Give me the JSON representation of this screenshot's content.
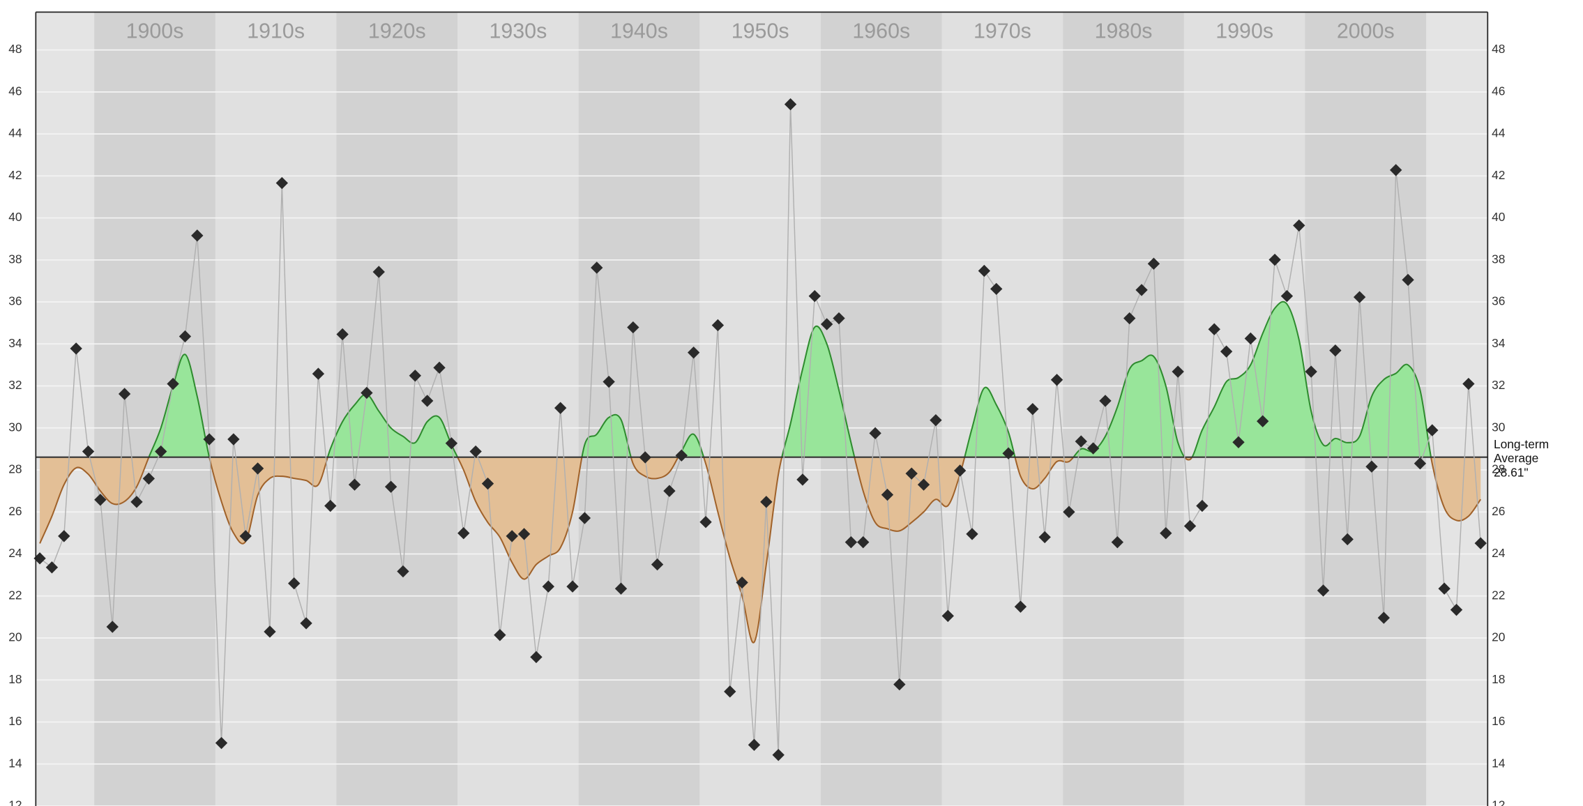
{
  "chart_data": {
    "type": "area-line",
    "x": [
      1895,
      1896,
      1897,
      1898,
      1899,
      1900,
      1901,
      1902,
      1903,
      1904,
      1905,
      1906,
      1907,
      1908,
      1909,
      1910,
      1911,
      1912,
      1913,
      1914,
      1915,
      1916,
      1917,
      1918,
      1919,
      1920,
      1921,
      1922,
      1923,
      1924,
      1925,
      1926,
      1927,
      1928,
      1929,
      1930,
      1931,
      1932,
      1933,
      1934,
      1935,
      1936,
      1937,
      1938,
      1939,
      1940,
      1941,
      1942,
      1943,
      1944,
      1945,
      1946,
      1947,
      1948,
      1949,
      1950,
      1951,
      1952,
      1953,
      1954,
      1955,
      1956,
      1957,
      1958,
      1959,
      1960,
      1961,
      1962,
      1963,
      1964,
      1965,
      1966,
      1967,
      1968,
      1969,
      1970,
      1971,
      1972,
      1973,
      1974,
      1975,
      1976,
      1977,
      1978,
      1979,
      1980,
      1981,
      1982,
      1983,
      1984,
      1985,
      1986,
      1987,
      1988,
      1989,
      1990,
      1991,
      1992,
      1993,
      1994,
      1995,
      1996,
      1997,
      1998,
      1999,
      2000,
      2001,
      2002,
      2003,
      2004,
      2005,
      2006,
      2007,
      2008,
      2009,
      2010,
      2011,
      2012,
      2013,
      2014
    ],
    "values": [
      23.79,
      23.36,
      24.85,
      33.78,
      28.88,
      26.58,
      20.53,
      31.62,
      26.48,
      27.59,
      28.88,
      32.1,
      34.36,
      39.16,
      29.46,
      15.0,
      29.46,
      24.85,
      28.07,
      20.3,
      41.66,
      22.6,
      20.7,
      32.58,
      26.29,
      34.46,
      27.3,
      31.67,
      37.43,
      27.2,
      23.17,
      32.49,
      31.29,
      32.87,
      29.27,
      24.99,
      28.88,
      27.35,
      20.14,
      24.85,
      24.95,
      19.09,
      22.45,
      30.95,
      22.45,
      25.71,
      37.63,
      32.2,
      22.35,
      34.79,
      28.6,
      23.5,
      27.0,
      28.69,
      33.59,
      25.52,
      34.89,
      17.45,
      22.64,
      14.91,
      26.48,
      14.43,
      45.41,
      27.54,
      36.28,
      34.94,
      35.22,
      24.56,
      24.56,
      29.75,
      26.82,
      17.79,
      27.83,
      27.3,
      30.37,
      21.05,
      27.97,
      24.95,
      37.48,
      36.62,
      28.79,
      21.49,
      30.9,
      24.8,
      32.29,
      26.0,
      29.36,
      29.03,
      31.29,
      24.56,
      35.22,
      36.57,
      37.82,
      24.99,
      32.68,
      25.33,
      26.29,
      34.7,
      33.64,
      29.32,
      34.26,
      30.32,
      38.01,
      36.28,
      39.64,
      32.68,
      22.26,
      33.69,
      24.7,
      36.23,
      28.16,
      20.96,
      42.28,
      37.05,
      28.31,
      29.89,
      22.35,
      21.34,
      32.1,
      24.51
    ],
    "smoothed": [
      24.5,
      25.8,
      27.3,
      28.1,
      27.8,
      27.0,
      26.4,
      26.5,
      27.2,
      28.6,
      30.0,
      32.0,
      33.5,
      31.5,
      28.6,
      26.5,
      25.0,
      24.6,
      26.8,
      27.6,
      27.7,
      27.6,
      27.5,
      27.3,
      29.0,
      30.3,
      31.1,
      31.6,
      30.8,
      30.0,
      29.6,
      29.3,
      30.3,
      30.5,
      29.2,
      28.0,
      26.5,
      25.5,
      24.8,
      23.6,
      22.8,
      23.5,
      23.9,
      24.3,
      26.0,
      29.2,
      29.7,
      30.5,
      30.4,
      28.3,
      27.7,
      27.6,
      27.9,
      28.9,
      29.7,
      28.3,
      26.0,
      23.8,
      22.0,
      19.8,
      23.5,
      27.8,
      30.2,
      32.8,
      34.8,
      34.0,
      31.8,
      29.3,
      27.0,
      25.5,
      25.2,
      25.1,
      25.5,
      26.0,
      26.6,
      26.3,
      27.8,
      30.0,
      31.9,
      31.1,
      29.8,
      27.7,
      27.1,
      27.6,
      28.4,
      28.4,
      29.0,
      28.9,
      29.6,
      31.0,
      32.8,
      33.2,
      33.4,
      32.0,
      29.3,
      28.5,
      29.9,
      31.0,
      32.2,
      32.4,
      33.0,
      34.5,
      35.7,
      35.9,
      34.2,
      30.8,
      29.2,
      29.5,
      29.3,
      29.6,
      31.5,
      32.3,
      32.6,
      33.0,
      31.8,
      28.3,
      26.2,
      25.6,
      25.8,
      26.6
    ],
    "average": 28.61,
    "average_label": [
      "Long-term",
      "Average",
      "28.61\""
    ],
    "decades": [
      {
        "label": "1900s",
        "start": 1900,
        "end": 1910
      },
      {
        "label": "1910s",
        "start": 1910,
        "end": 1920
      },
      {
        "label": "1920s",
        "start": 1920,
        "end": 1930
      },
      {
        "label": "1930s",
        "start": 1930,
        "end": 1940
      },
      {
        "label": "1940s",
        "start": 1940,
        "end": 1950
      },
      {
        "label": "1950s",
        "start": 1950,
        "end": 1960
      },
      {
        "label": "1960s",
        "start": 1960,
        "end": 1970
      },
      {
        "label": "1970s",
        "start": 1970,
        "end": 1980
      },
      {
        "label": "1980s",
        "start": 1980,
        "end": 1990
      },
      {
        "label": "1990s",
        "start": 1990,
        "end": 2000
      },
      {
        "label": "2000s",
        "start": 2000,
        "end": 2010
      }
    ],
    "xlim": [
      1894.67,
      2014.58
    ],
    "ylim": [
      12,
      49.8
    ],
    "yticks": [
      12,
      14,
      16,
      18,
      20,
      22,
      24,
      26,
      28,
      30,
      32,
      34,
      36,
      38,
      40,
      42,
      44,
      46,
      48
    ],
    "grid": true,
    "marker_color": "#2a2a2a",
    "line_color": "#b0b0b0",
    "above_color": "#98e59a",
    "above_stroke": "#2e8b2e",
    "below_color": "#e3bf96",
    "below_stroke": "#a0622a",
    "average_color": "#333333"
  }
}
